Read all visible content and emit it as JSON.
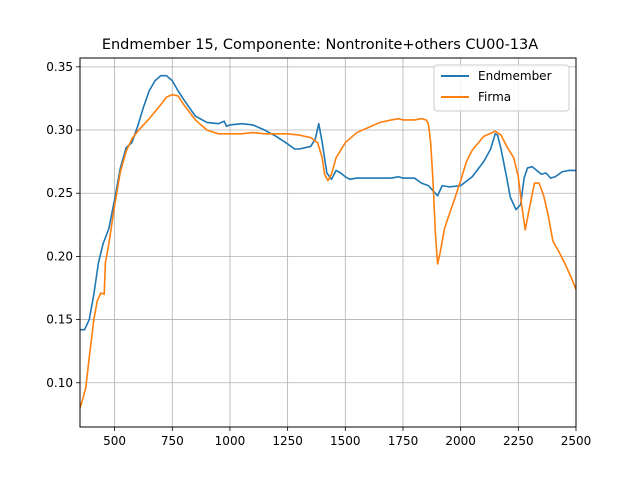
{
  "chart_data": {
    "type": "line",
    "title": "Endmember 15, Componente: Nontronite+others CU00-13A",
    "xlabel": "",
    "ylabel": "",
    "xlim": [
      350,
      2500
    ],
    "ylim": [
      0.065,
      0.357
    ],
    "grid": true,
    "legend_position": "top-right",
    "xticks": [
      500,
      750,
      1000,
      1250,
      1500,
      1750,
      2000,
      2250,
      2500
    ],
    "xtick_labels": [
      "500",
      "750",
      "1000",
      "1250",
      "1500",
      "1750",
      "2000",
      "2250",
      "2500"
    ],
    "yticks": [
      0.1,
      0.15,
      0.2,
      0.25,
      0.3,
      0.35
    ],
    "ytick_labels": [
      "0.10",
      "0.15",
      "0.20",
      "0.25",
      "0.30",
      "0.35"
    ],
    "series": [
      {
        "name": "Endmember",
        "color": "#1f77b4",
        "x": [
          350,
          370,
          390,
          410,
          430,
          450,
          475,
          500,
          525,
          550,
          575,
          600,
          625,
          650,
          675,
          700,
          725,
          750,
          775,
          800,
          850,
          900,
          950,
          975,
          985,
          1000,
          1050,
          1100,
          1150,
          1200,
          1250,
          1280,
          1300,
          1350,
          1370,
          1385,
          1400,
          1420,
          1440,
          1460,
          1480,
          1500,
          1520,
          1550,
          1600,
          1650,
          1700,
          1730,
          1750,
          1800,
          1830,
          1860,
          1880,
          1900,
          1920,
          1950,
          2000,
          2050,
          2100,
          2130,
          2150,
          2160,
          2175,
          2200,
          2215,
          2240,
          2260,
          2275,
          2290,
          2310,
          2330,
          2350,
          2370,
          2390,
          2410,
          2440,
          2470,
          2500
        ],
        "y": [
          0.142,
          0.142,
          0.15,
          0.17,
          0.195,
          0.21,
          0.222,
          0.245,
          0.27,
          0.286,
          0.29,
          0.303,
          0.318,
          0.331,
          0.339,
          0.343,
          0.343,
          0.339,
          0.331,
          0.324,
          0.311,
          0.306,
          0.305,
          0.307,
          0.303,
          0.304,
          0.305,
          0.304,
          0.3,
          0.295,
          0.289,
          0.285,
          0.285,
          0.287,
          0.293,
          0.305,
          0.29,
          0.266,
          0.261,
          0.268,
          0.266,
          0.263,
          0.261,
          0.262,
          0.262,
          0.262,
          0.262,
          0.263,
          0.262,
          0.262,
          0.258,
          0.256,
          0.252,
          0.248,
          0.256,
          0.255,
          0.256,
          0.263,
          0.275,
          0.285,
          0.297,
          0.296,
          0.285,
          0.262,
          0.247,
          0.237,
          0.241,
          0.262,
          0.27,
          0.271,
          0.268,
          0.265,
          0.266,
          0.262,
          0.263,
          0.267,
          0.268,
          0.268
        ]
      },
      {
        "name": "Firma",
        "color": "#ff7f0e",
        "x": [
          350,
          360,
          375,
          390,
          410,
          425,
          440,
          455,
          460,
          475,
          500,
          525,
          550,
          575,
          600,
          650,
          700,
          725,
          750,
          775,
          800,
          850,
          900,
          950,
          1000,
          1050,
          1100,
          1150,
          1200,
          1250,
          1300,
          1350,
          1380,
          1400,
          1410,
          1425,
          1440,
          1460,
          1500,
          1550,
          1600,
          1650,
          1700,
          1730,
          1750,
          1800,
          1830,
          1850,
          1860,
          1870,
          1880,
          1890,
          1900,
          1910,
          1930,
          1950,
          1975,
          2000,
          2025,
          2050,
          2100,
          2150,
          2175,
          2200,
          2230,
          2250,
          2265,
          2280,
          2300,
          2320,
          2340,
          2360,
          2380,
          2400,
          2425,
          2450,
          2475,
          2500
        ],
        "y": [
          0.08,
          0.086,
          0.096,
          0.12,
          0.15,
          0.165,
          0.171,
          0.17,
          0.195,
          0.21,
          0.24,
          0.267,
          0.283,
          0.293,
          0.299,
          0.309,
          0.32,
          0.326,
          0.328,
          0.327,
          0.32,
          0.308,
          0.3,
          0.297,
          0.297,
          0.297,
          0.298,
          0.297,
          0.297,
          0.297,
          0.296,
          0.294,
          0.29,
          0.278,
          0.265,
          0.26,
          0.265,
          0.278,
          0.29,
          0.298,
          0.302,
          0.306,
          0.308,
          0.309,
          0.308,
          0.308,
          0.309,
          0.308,
          0.305,
          0.29,
          0.26,
          0.22,
          0.194,
          0.202,
          0.222,
          0.233,
          0.246,
          0.26,
          0.275,
          0.284,
          0.295,
          0.299,
          0.296,
          0.287,
          0.278,
          0.263,
          0.24,
          0.221,
          0.24,
          0.258,
          0.258,
          0.248,
          0.232,
          0.212,
          0.204,
          0.195,
          0.185,
          0.174
        ]
      }
    ]
  }
}
